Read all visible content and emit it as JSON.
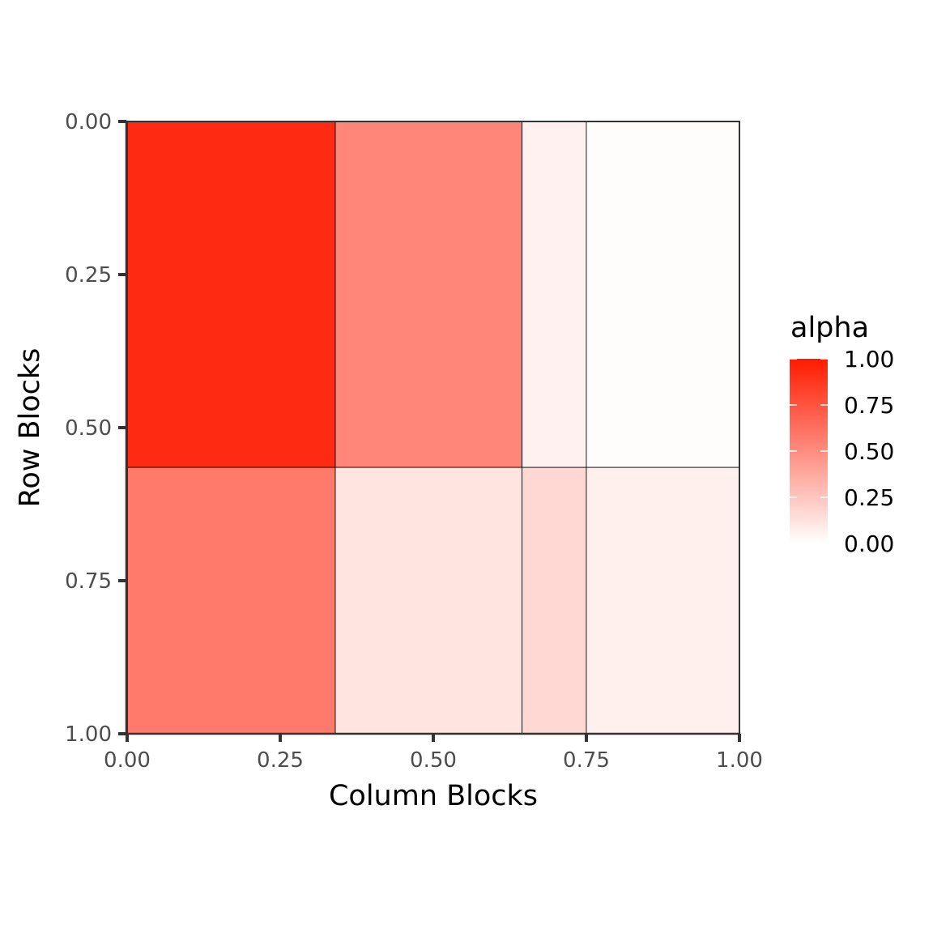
{
  "chart_data": {
    "type": "heatmap",
    "title": "",
    "xlabel": "Column Blocks",
    "ylabel": "Row Blocks",
    "xlim": [
      0,
      1
    ],
    "ylim": [
      0,
      1
    ],
    "y_reversed": true,
    "x_ticks": [
      "0.00",
      "0.25",
      "0.50",
      "0.75",
      "1.00"
    ],
    "y_ticks": [
      "0.00",
      "0.25",
      "0.50",
      "0.75",
      "1.00"
    ],
    "grid": false,
    "legend": {
      "title": "alpha",
      "position": "right",
      "range": [
        0,
        1
      ],
      "ticks": [
        "1.00",
        "0.75",
        "0.50",
        "0.25",
        "0.00"
      ],
      "color_high": "#ff1a00",
      "color_low": "#ffffff"
    },
    "column_breaks": [
      0,
      0.34,
      0.645,
      0.75,
      1
    ],
    "row_breaks": [
      0,
      0.565,
      1
    ],
    "cells": [
      {
        "row": 0,
        "col": 0,
        "alpha": 0.93
      },
      {
        "row": 0,
        "col": 1,
        "alpha": 0.53
      },
      {
        "row": 0,
        "col": 2,
        "alpha": 0.06
      },
      {
        "row": 0,
        "col": 3,
        "alpha": 0.01
      },
      {
        "row": 1,
        "col": 0,
        "alpha": 0.58
      },
      {
        "row": 1,
        "col": 1,
        "alpha": 0.12
      },
      {
        "row": 1,
        "col": 2,
        "alpha": 0.17
      },
      {
        "row": 1,
        "col": 3,
        "alpha": 0.07
      }
    ]
  }
}
